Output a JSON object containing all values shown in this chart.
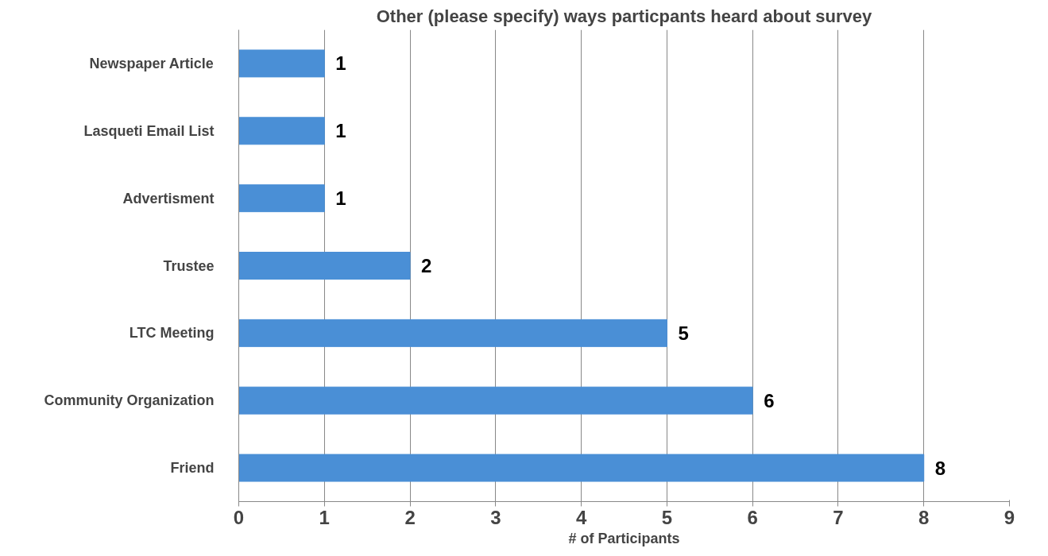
{
  "chart_data": {
    "type": "bar",
    "orientation": "horizontal",
    "title": "Other (please specify) ways particpants heard about survey",
    "xlabel": "# of Participants",
    "categories": [
      "Newspaper Article",
      "Lasqueti Email List",
      "Advertisment",
      "Trustee",
      "LTC Meeting",
      "Community Organization",
      "Friend"
    ],
    "values": [
      1,
      1,
      1,
      2,
      5,
      6,
      8
    ],
    "color": "#4a8fd6",
    "xlim": [
      0,
      9
    ],
    "xticks": [
      0,
      1,
      2,
      3,
      4,
      5,
      6,
      7,
      8,
      9
    ],
    "grid": "x",
    "data_labels": true
  }
}
